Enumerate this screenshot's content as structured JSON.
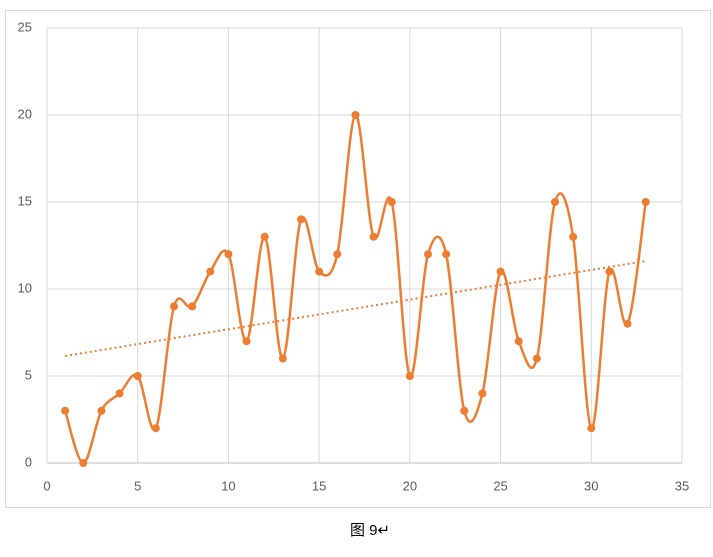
{
  "chart_data": {
    "type": "scatter-smooth",
    "x": [
      1,
      2,
      3,
      4,
      5,
      6,
      7,
      8,
      9,
      10,
      11,
      12,
      13,
      14,
      15,
      16,
      17,
      18,
      19,
      20,
      21,
      22,
      23,
      24,
      25,
      26,
      27,
      28,
      29,
      30,
      31,
      32,
      33
    ],
    "series": [
      {
        "color": "#ed7d31",
        "values": [
          3,
          0,
          3,
          4,
          5,
          2,
          9,
          9,
          11,
          12,
          7,
          13,
          6,
          14,
          11,
          12,
          20,
          13,
          15,
          5,
          12,
          12,
          3,
          4,
          11,
          7,
          6,
          15,
          13,
          2,
          11,
          8,
          15
        ]
      }
    ],
    "trendline": {
      "type": "linear",
      "color": "#ed7d31"
    },
    "xlim": [
      0,
      35
    ],
    "xticks": [
      0,
      5,
      10,
      15,
      20,
      25,
      30,
      35
    ],
    "ylim": [
      0,
      25
    ],
    "yticks": [
      0,
      5,
      10,
      15,
      20,
      25
    ],
    "grid": true,
    "caption": "图 9↵"
  }
}
